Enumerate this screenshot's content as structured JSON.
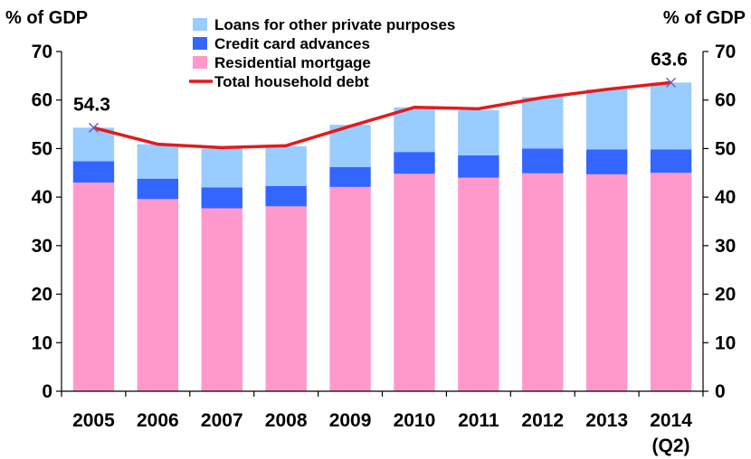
{
  "chart_data": {
    "type": "bar",
    "stacked": true,
    "categories": [
      "2005",
      "2006",
      "2007",
      "2008",
      "2009",
      "2010",
      "2011",
      "2012",
      "2013",
      "2014"
    ],
    "category_sublabels": [
      "",
      "",
      "",
      "",
      "",
      "",
      "",
      "",
      "",
      "(Q2)"
    ],
    "series": [
      {
        "name": "Residential mortgage",
        "type": "bar",
        "color": "#ff99cc",
        "values": [
          43.0,
          39.6,
          37.7,
          38.1,
          42.1,
          44.8,
          44.0,
          44.9,
          44.7,
          45.0
        ]
      },
      {
        "name": "Credit card advances",
        "type": "bar",
        "color": "#3366ff",
        "values": [
          4.4,
          4.2,
          4.3,
          4.2,
          4.1,
          4.5,
          4.6,
          5.1,
          5.1,
          4.8
        ]
      },
      {
        "name": "Loans for other private purposes",
        "type": "bar",
        "color": "#99ccff",
        "values": [
          6.9,
          7.1,
          8.0,
          8.2,
          8.7,
          9.2,
          9.3,
          10.6,
          12.4,
          13.8
        ]
      },
      {
        "name": "Total household debt",
        "type": "line",
        "color": "#e31a1c",
        "values": [
          54.3,
          50.9,
          50.2,
          50.6,
          54.6,
          58.5,
          58.2,
          60.5,
          62.2,
          63.6
        ]
      }
    ],
    "ylabel_left": "% of GDP",
    "ylabel_right": "% of GDP",
    "ylim": [
      0,
      70
    ],
    "yticks": [
      "0",
      "10",
      "20",
      "30",
      "40",
      "50",
      "60",
      "70"
    ],
    "legend_order": [
      "Loans for other private purposes",
      "Credit card advances",
      "Residential mortgage",
      "Total household debt"
    ],
    "legend_position": "top-center",
    "annotations": [
      {
        "text": "54.3",
        "category": "2005"
      },
      {
        "text": "63.6",
        "category": "2014"
      }
    ],
    "grid": false
  }
}
